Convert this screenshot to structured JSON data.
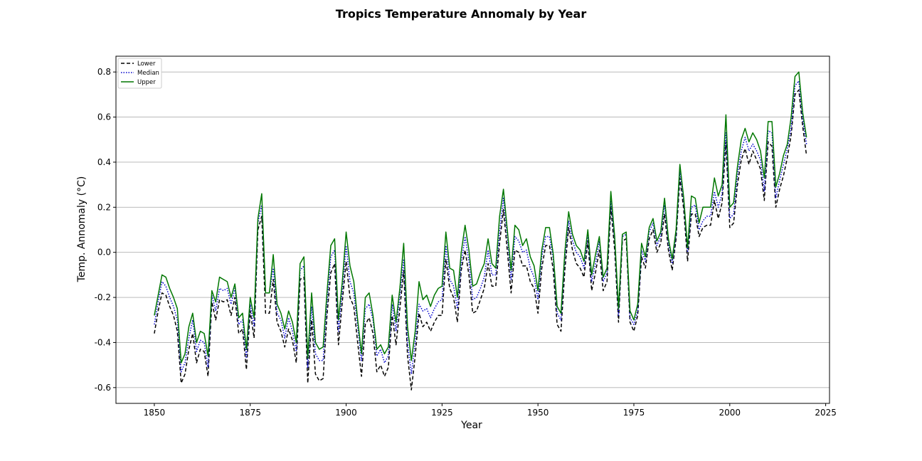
{
  "chart_data": {
    "type": "line",
    "title": "Tropics Temperature Annomaly by Year",
    "xlabel": "Year",
    "ylabel": "Temp. Annomaly (°C)",
    "xlim": [
      1840,
      2026
    ],
    "ylim": [
      -0.67,
      0.87
    ],
    "xticks": [
      1850,
      1875,
      1900,
      1925,
      1950,
      1975,
      2000,
      2025
    ],
    "yticks": [
      -0.6,
      -0.4,
      -0.2,
      0.0,
      0.2,
      0.4,
      0.6,
      0.8
    ],
    "grid": "horizontal",
    "legend_position": "top-left",
    "x_start": 1850,
    "series": [
      {
        "name": "Lower",
        "color": "#000000",
        "style": "dashed",
        "values": [
          -0.36,
          -0.26,
          -0.18,
          -0.19,
          -0.24,
          -0.28,
          -0.35,
          -0.58,
          -0.54,
          -0.43,
          -0.36,
          -0.49,
          -0.43,
          -0.44,
          -0.55,
          -0.22,
          -0.3,
          -0.21,
          -0.22,
          -0.21,
          -0.28,
          -0.2,
          -0.36,
          -0.34,
          -0.52,
          -0.26,
          -0.38,
          0.1,
          0.16,
          -0.27,
          -0.27,
          -0.12,
          -0.31,
          -0.35,
          -0.42,
          -0.34,
          -0.39,
          -0.49,
          -0.12,
          -0.11,
          -0.58,
          -0.3,
          -0.54,
          -0.57,
          -0.56,
          -0.28,
          -0.09,
          -0.05,
          -0.41,
          -0.22,
          -0.04,
          -0.2,
          -0.24,
          -0.4,
          -0.55,
          -0.32,
          -0.29,
          -0.36,
          -0.53,
          -0.5,
          -0.55,
          -0.51,
          -0.28,
          -0.41,
          -0.25,
          -0.08,
          -0.46,
          -0.61,
          -0.46,
          -0.27,
          -0.33,
          -0.31,
          -0.35,
          -0.31,
          -0.28,
          -0.28,
          -0.03,
          -0.16,
          -0.2,
          -0.31,
          -0.08,
          0.01,
          -0.1,
          -0.27,
          -0.26,
          -0.21,
          -0.16,
          -0.05,
          -0.15,
          -0.15,
          0.04,
          0.19,
          0.01,
          -0.18,
          0.01,
          0.0,
          -0.06,
          -0.06,
          -0.13,
          -0.16,
          -0.27,
          -0.07,
          0.03,
          0.03,
          -0.08,
          -0.32,
          -0.35,
          -0.08,
          0.11,
          0.01,
          -0.05,
          -0.07,
          -0.11,
          0.05,
          -0.17,
          -0.09,
          0.01,
          -0.17,
          -0.13,
          0.2,
          0.01,
          -0.31,
          0.05,
          0.06,
          -0.31,
          -0.35,
          -0.28,
          -0.02,
          -0.07,
          0.06,
          0.1,
          0.0,
          0.04,
          0.17,
          0.01,
          -0.08,
          0.06,
          0.33,
          0.19,
          -0.04,
          0.17,
          0.17,
          0.07,
          0.11,
          0.12,
          0.12,
          0.23,
          0.15,
          0.22,
          0.49,
          0.11,
          0.13,
          0.3,
          0.41,
          0.46,
          0.39,
          0.45,
          0.41,
          0.37,
          0.23,
          0.49,
          0.47,
          0.2,
          0.28,
          0.34,
          0.42,
          0.52,
          0.7,
          0.72,
          0.56,
          0.43
        ]
      },
      {
        "name": "Median",
        "color": "#0000cc",
        "style": "dotted",
        "values": [
          -0.32,
          -0.22,
          -0.13,
          -0.15,
          -0.2,
          -0.24,
          -0.3,
          -0.53,
          -0.49,
          -0.38,
          -0.3,
          -0.44,
          -0.39,
          -0.4,
          -0.51,
          -0.19,
          -0.26,
          -0.16,
          -0.17,
          -0.16,
          -0.23,
          -0.16,
          -0.32,
          -0.3,
          -0.47,
          -0.23,
          -0.33,
          0.13,
          0.21,
          -0.18,
          -0.18,
          -0.07,
          -0.27,
          -0.3,
          -0.38,
          -0.29,
          -0.35,
          -0.44,
          -0.08,
          -0.06,
          -0.51,
          -0.24,
          -0.45,
          -0.48,
          -0.48,
          -0.23,
          -0.02,
          0.01,
          -0.35,
          -0.17,
          0.03,
          -0.13,
          -0.18,
          -0.33,
          -0.48,
          -0.25,
          -0.23,
          -0.3,
          -0.46,
          -0.43,
          -0.49,
          -0.46,
          -0.23,
          -0.35,
          -0.19,
          -0.03,
          -0.4,
          -0.54,
          -0.4,
          -0.23,
          -0.26,
          -0.25,
          -0.29,
          -0.25,
          -0.22,
          -0.21,
          0.03,
          -0.12,
          -0.15,
          -0.25,
          -0.05,
          0.07,
          -0.04,
          -0.21,
          -0.2,
          -0.16,
          -0.11,
          0.01,
          -0.1,
          -0.1,
          0.09,
          0.24,
          0.07,
          -0.12,
          0.07,
          0.05,
          0.0,
          0.01,
          -0.07,
          -0.11,
          -0.21,
          -0.02,
          0.07,
          0.07,
          -0.03,
          -0.27,
          -0.3,
          -0.03,
          0.14,
          0.05,
          0.0,
          -0.02,
          -0.07,
          0.08,
          -0.13,
          -0.05,
          0.05,
          -0.13,
          -0.09,
          0.23,
          0.05,
          -0.28,
          0.07,
          0.08,
          -0.29,
          -0.32,
          -0.26,
          0.01,
          -0.04,
          0.09,
          0.13,
          0.03,
          0.07,
          0.21,
          0.04,
          -0.05,
          0.08,
          0.36,
          0.22,
          0.0,
          0.2,
          0.21,
          0.1,
          0.14,
          0.16,
          0.16,
          0.27,
          0.2,
          0.26,
          0.53,
          0.15,
          0.17,
          0.34,
          0.45,
          0.51,
          0.45,
          0.48,
          0.45,
          0.41,
          0.27,
          0.54,
          0.53,
          0.24,
          0.32,
          0.39,
          0.46,
          0.55,
          0.74,
          0.76,
          0.59,
          0.48
        ]
      },
      {
        "name": "Upper",
        "color": "#007700",
        "style": "solid",
        "values": [
          -0.28,
          -0.19,
          -0.1,
          -0.11,
          -0.16,
          -0.2,
          -0.25,
          -0.49,
          -0.45,
          -0.33,
          -0.27,
          -0.4,
          -0.35,
          -0.36,
          -0.46,
          -0.17,
          -0.22,
          -0.11,
          -0.12,
          -0.13,
          -0.2,
          -0.14,
          -0.29,
          -0.27,
          -0.43,
          -0.2,
          -0.29,
          0.15,
          0.26,
          -0.18,
          -0.18,
          -0.01,
          -0.23,
          -0.27,
          -0.34,
          -0.26,
          -0.31,
          -0.4,
          -0.05,
          -0.02,
          -0.47,
          -0.18,
          -0.4,
          -0.43,
          -0.42,
          -0.18,
          0.03,
          0.06,
          -0.3,
          -0.13,
          0.09,
          -0.06,
          -0.13,
          -0.3,
          -0.45,
          -0.2,
          -0.18,
          -0.28,
          -0.43,
          -0.41,
          -0.45,
          -0.42,
          -0.19,
          -0.31,
          -0.16,
          0.04,
          -0.33,
          -0.48,
          -0.35,
          -0.13,
          -0.21,
          -0.19,
          -0.24,
          -0.19,
          -0.16,
          -0.15,
          0.09,
          -0.07,
          -0.08,
          -0.2,
          0.0,
          0.12,
          0.01,
          -0.15,
          -0.14,
          -0.09,
          -0.05,
          0.06,
          -0.05,
          -0.07,
          0.16,
          0.28,
          0.1,
          -0.08,
          0.12,
          0.1,
          0.03,
          0.06,
          -0.02,
          -0.06,
          -0.17,
          0.01,
          0.11,
          0.11,
          -0.01,
          -0.24,
          -0.27,
          0.0,
          0.18,
          0.08,
          0.03,
          0.01,
          -0.04,
          0.1,
          -0.1,
          -0.01,
          0.07,
          -0.11,
          -0.07,
          0.27,
          0.07,
          -0.25,
          0.08,
          0.09,
          -0.26,
          -0.3,
          -0.23,
          0.04,
          -0.02,
          0.11,
          0.15,
          0.05,
          0.09,
          0.24,
          0.06,
          -0.03,
          0.1,
          0.39,
          0.24,
          0.02,
          0.25,
          0.24,
          0.13,
          0.2,
          0.2,
          0.2,
          0.33,
          0.25,
          0.3,
          0.61,
          0.2,
          0.22,
          0.38,
          0.5,
          0.55,
          0.49,
          0.53,
          0.5,
          0.45,
          0.33,
          0.58,
          0.58,
          0.29,
          0.35,
          0.43,
          0.48,
          0.6,
          0.78,
          0.8,
          0.62,
          0.51
        ]
      }
    ]
  }
}
